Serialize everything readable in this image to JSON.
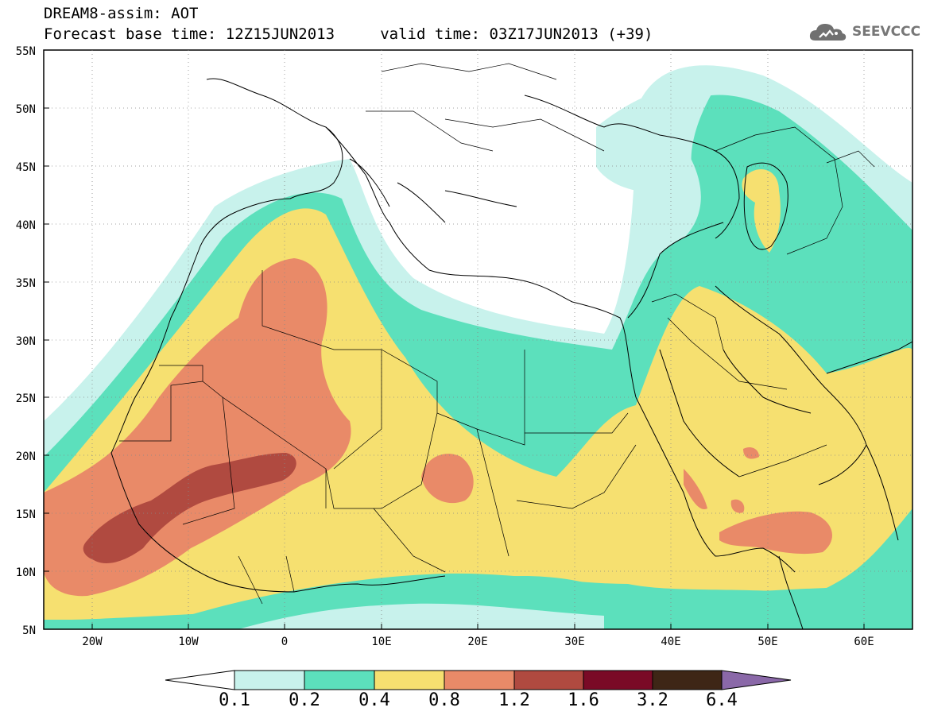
{
  "header": {
    "title": "DREAM8-assim: AOT",
    "subtitle": "Forecast base time: 12Z15JUN2013     valid time: 03Z17JUN2013 (+39)"
  },
  "logo": {
    "text": "SEEVCCC",
    "icon": "cloud-icon"
  },
  "map": {
    "projection": "lat-lon",
    "lon_range": [
      -25,
      65
    ],
    "lat_range": [
      5,
      55
    ],
    "lat_labels": [
      "55N",
      "50N",
      "45N",
      "40N",
      "35N",
      "30N",
      "25N",
      "20N",
      "15N",
      "10N",
      "5N"
    ],
    "lon_labels": [
      "20W",
      "10W",
      "0",
      "10E",
      "20E",
      "30E",
      "40E",
      "50E",
      "60E"
    ],
    "gridlines": "dotted"
  },
  "legend": {
    "labels": [
      "0.1",
      "0.2",
      "0.4",
      "0.8",
      "1.2",
      "1.6",
      "3.2",
      "6.4"
    ],
    "colors": [
      "#ffffff",
      "#c8f2ec",
      "#5ce0bc",
      "#f6e070",
      "#e98a68",
      "#b04a40",
      "#7a0a26",
      "#3e2616",
      "#8a68a8"
    ],
    "extend": "both"
  }
}
